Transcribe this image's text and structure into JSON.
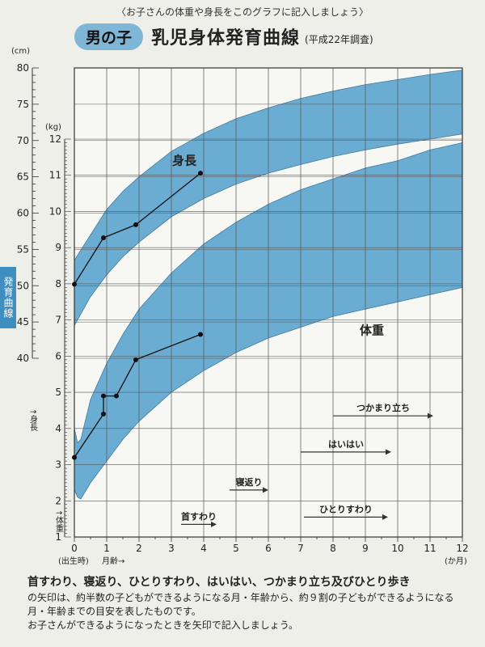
{
  "header": {
    "subtitle": "〈お子さんの体重や身長をこのグラフに記入しましょう〉",
    "badge": "男の子",
    "title": "乳児身体発育曲線",
    "survey": "(平成22年調査)"
  },
  "side_tab": "発育曲線",
  "chart_data": {
    "type": "line",
    "x_label": "月齢→",
    "x_unit": "(か月)",
    "x_birth_label": "(出生時)",
    "x_ticks": [
      "0",
      "1",
      "2",
      "3",
      "4",
      "5",
      "6",
      "7",
      "8",
      "9",
      "10",
      "11",
      "12"
    ],
    "xlim": [
      0,
      12
    ],
    "height_axis": {
      "unit": "(cm)",
      "label": "↑身長",
      "ylim": [
        40,
        80
      ],
      "ticks": [
        "40",
        "45",
        "50",
        "55",
        "60",
        "65",
        "70",
        "75",
        "80"
      ]
    },
    "weight_axis": {
      "unit": "(kg)",
      "label": "↑体重",
      "ylim": [
        1,
        12
      ],
      "ticks": [
        "1",
        "2",
        "3",
        "4",
        "5",
        "6",
        "7",
        "8",
        "9",
        "10",
        "11",
        "12"
      ]
    },
    "grid": true,
    "bands": [
      {
        "name": "身長",
        "axis": "height",
        "color": "#5ca6cf",
        "x": [
          0,
          0.5,
          1,
          1.5,
          2,
          3,
          4,
          5,
          6,
          7,
          8,
          9,
          10,
          11,
          12
        ],
        "upper": [
          53.5,
          57,
          60.5,
          63,
          65,
          68.5,
          71,
          73,
          74.5,
          75.8,
          76.8,
          77.7,
          78.4,
          79.1,
          79.7
        ],
        "lower": [
          44.5,
          48.5,
          51.5,
          54,
          56,
          59.5,
          62,
          64,
          65.5,
          66.7,
          67.8,
          68.7,
          69.5,
          70.2,
          70.9
        ]
      },
      {
        "name": "体重",
        "axis": "weight",
        "color": "#5ca6cf",
        "x": [
          0,
          0.1,
          0.2,
          0.5,
          1,
          1.5,
          2,
          3,
          4,
          5,
          6,
          7,
          8,
          9,
          10,
          11,
          12
        ],
        "upper": [
          4.0,
          3.6,
          3.7,
          4.8,
          5.8,
          6.6,
          7.3,
          8.3,
          9.1,
          9.7,
          10.2,
          10.6,
          10.9,
          11.2,
          11.4,
          11.7,
          11.9
        ],
        "lower": [
          2.3,
          2.1,
          2.05,
          2.5,
          3.1,
          3.7,
          4.2,
          5.0,
          5.6,
          6.1,
          6.5,
          6.8,
          7.1,
          7.3,
          7.5,
          7.7,
          7.9
        ]
      }
    ],
    "series": [
      {
        "axis": "height",
        "x": [
          0,
          0.9,
          1.9,
          3.9
        ],
        "y": [
          50.2,
          56.6,
          58.4,
          65.5
        ]
      },
      {
        "axis": "weight",
        "x": [
          0,
          0.9,
          0.9,
          1.3,
          1.9,
          3.9
        ],
        "y": [
          3.2,
          4.4,
          4.9,
          4.9,
          5.9,
          6.6
        ]
      }
    ],
    "band_labels": [
      {
        "text": "身長",
        "x": 3.4,
        "axis": "height",
        "y": 66.7
      },
      {
        "text": "体重",
        "x": 9.2,
        "axis": "weight",
        "y": 6.6
      }
    ],
    "milestones": [
      {
        "text": "つかまり立ち",
        "x_start": 8.0,
        "x_end": 11.1,
        "axis": "weight",
        "y": 4.35
      },
      {
        "text": "はいはい",
        "x_start": 7.0,
        "x_end": 9.8,
        "axis": "weight",
        "y": 3.35
      },
      {
        "text": "寝返り",
        "x_start": 4.8,
        "x_end": 6.0,
        "axis": "weight",
        "y": 2.3
      },
      {
        "text": "ひとりすわり",
        "x_start": 7.1,
        "x_end": 9.7,
        "axis": "weight",
        "y": 1.55
      },
      {
        "text": "首すわり",
        "x_start": 3.3,
        "x_end": 4.4,
        "axis": "weight",
        "y": 1.35
      }
    ]
  },
  "footer": {
    "lead": "首すわり、寝返り、ひとりすわり、はいはい、つかまり立ち及びひとり歩き",
    "body": "の矢印は、約半数の子どもができるようになる月・年齢から、約９割の子どもができるようになる月・年齢までの目安を表したものです。",
    "note": "お子さんができるようになったときを矢印で記入しましょう。"
  }
}
